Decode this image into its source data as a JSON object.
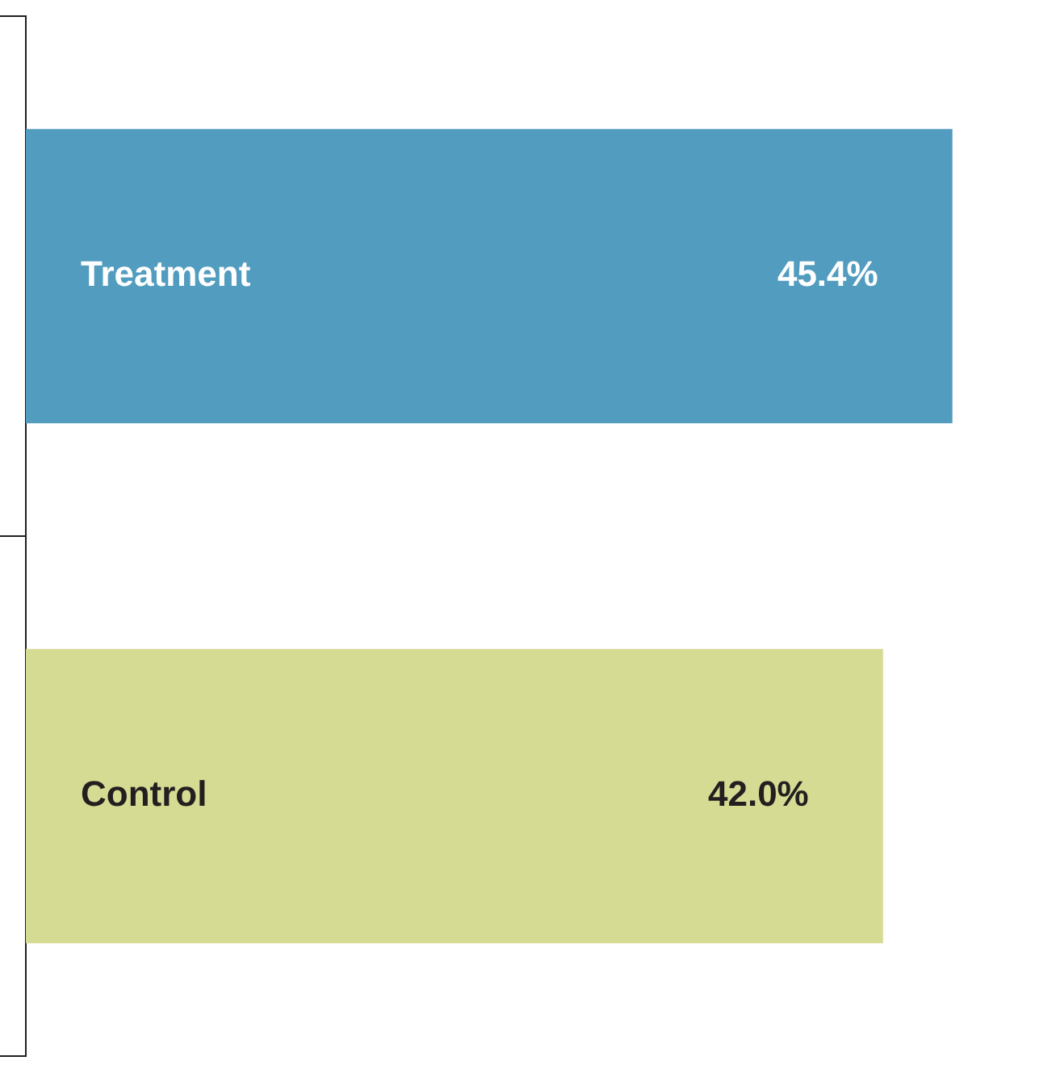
{
  "chart_data": {
    "type": "bar",
    "orientation": "horizontal",
    "categories": [
      "Treatment",
      "Control"
    ],
    "values": [
      45.4,
      42.0
    ],
    "colors": [
      "#529dbf",
      "#d5db92"
    ],
    "value_labels": [
      "45.4%",
      "42.0%"
    ],
    "legend": false,
    "grid": false
  }
}
